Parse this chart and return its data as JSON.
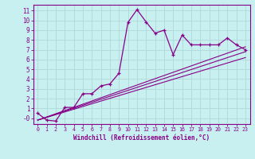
{
  "title": "",
  "xlabel": "Windchill (Refroidissement éolien,°C)",
  "bg_color": "#c8f0f0",
  "grid_color": "#b0d8d8",
  "line_color": "#880088",
  "x_ticks": [
    0,
    1,
    2,
    3,
    4,
    5,
    6,
    7,
    8,
    9,
    10,
    11,
    12,
    13,
    14,
    15,
    16,
    17,
    18,
    19,
    20,
    21,
    22,
    23
  ],
  "y_ticks": [
    0,
    1,
    2,
    3,
    4,
    5,
    6,
    7,
    8,
    9,
    10,
    11
  ],
  "y_tick_labels": [
    "-0",
    "1",
    "2",
    "3",
    "4",
    "5",
    "6",
    "7",
    "8",
    "9",
    "10",
    "11"
  ],
  "ylim": [
    -0.6,
    11.6
  ],
  "xlim": [
    -0.5,
    23.5
  ],
  "main_x": [
    0,
    1,
    2,
    3,
    4,
    5,
    6,
    7,
    8,
    9,
    10,
    11,
    12,
    13,
    14,
    15,
    16,
    17,
    18,
    19,
    20,
    21,
    22,
    23
  ],
  "main_y": [
    0.5,
    -0.2,
    -0.3,
    1.1,
    1.1,
    2.5,
    2.5,
    3.3,
    3.5,
    4.6,
    9.8,
    11.1,
    9.85,
    8.7,
    9.0,
    6.5,
    8.5,
    7.5,
    7.5,
    7.5,
    7.5,
    8.2,
    7.5,
    7.0
  ],
  "line2_x": [
    0,
    23
  ],
  "line2_y": [
    -0.2,
    7.3
  ],
  "line3_x": [
    0,
    23
  ],
  "line3_y": [
    -0.2,
    6.8
  ],
  "line4_x": [
    0,
    23
  ],
  "line4_y": [
    -0.2,
    6.2
  ]
}
